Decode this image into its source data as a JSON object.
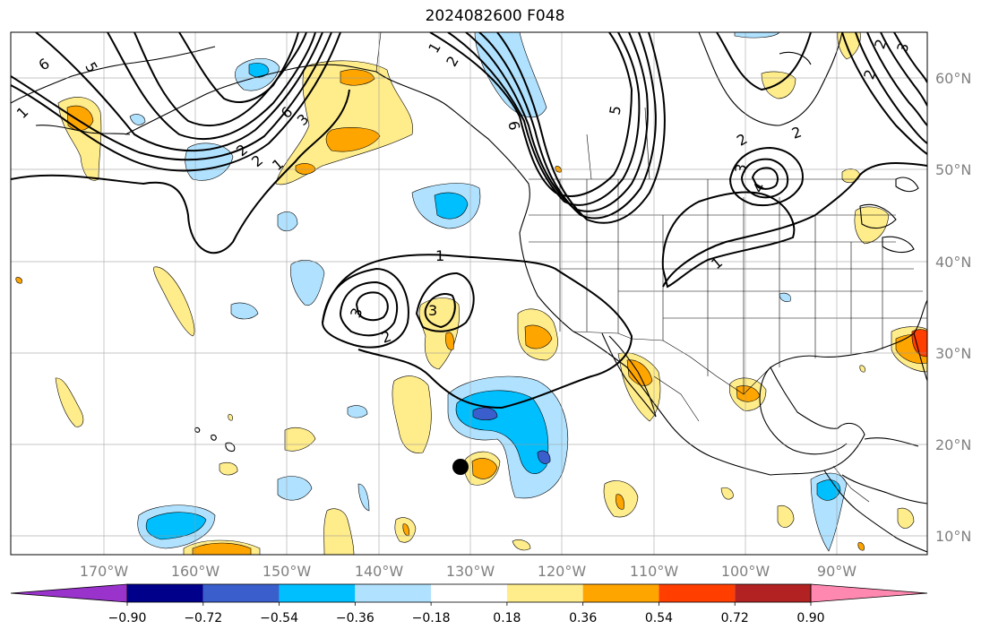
{
  "title": "2024082600 F048",
  "longitude_labels": [
    "170°W",
    "160°W",
    "150°W",
    "140°W",
    "130°W",
    "120°W",
    "110°W",
    "100°W",
    "90°W"
  ],
  "latitude_labels": [
    "60°N",
    "50°N",
    "40°N",
    "30°N",
    "20°N",
    "10°N"
  ],
  "colorbar": {
    "ticks": [
      "−0.90",
      "−0.72",
      "−0.54",
      "−0.36",
      "−0.18",
      "0.18",
      "0.36",
      "0.54",
      "0.72",
      "0.90"
    ],
    "colors": [
      "#9933cc",
      "#00008b",
      "#3a5fcd",
      "#00bfff",
      "#b0e2ff",
      "#ffffff",
      "#ffec8b",
      "#ffa500",
      "#ff3e00",
      "#b22222",
      "#ff88b0"
    ]
  },
  "contour_labels": [
    "6",
    "5",
    "2",
    "1",
    "2",
    "3",
    "6",
    "1",
    "2",
    "6",
    "5",
    "3",
    "2",
    "1",
    "3",
    "2",
    "4",
    "1",
    "2",
    "3",
    "2",
    "1",
    "2",
    "3"
  ],
  "marker": "storm-position-dot"
}
